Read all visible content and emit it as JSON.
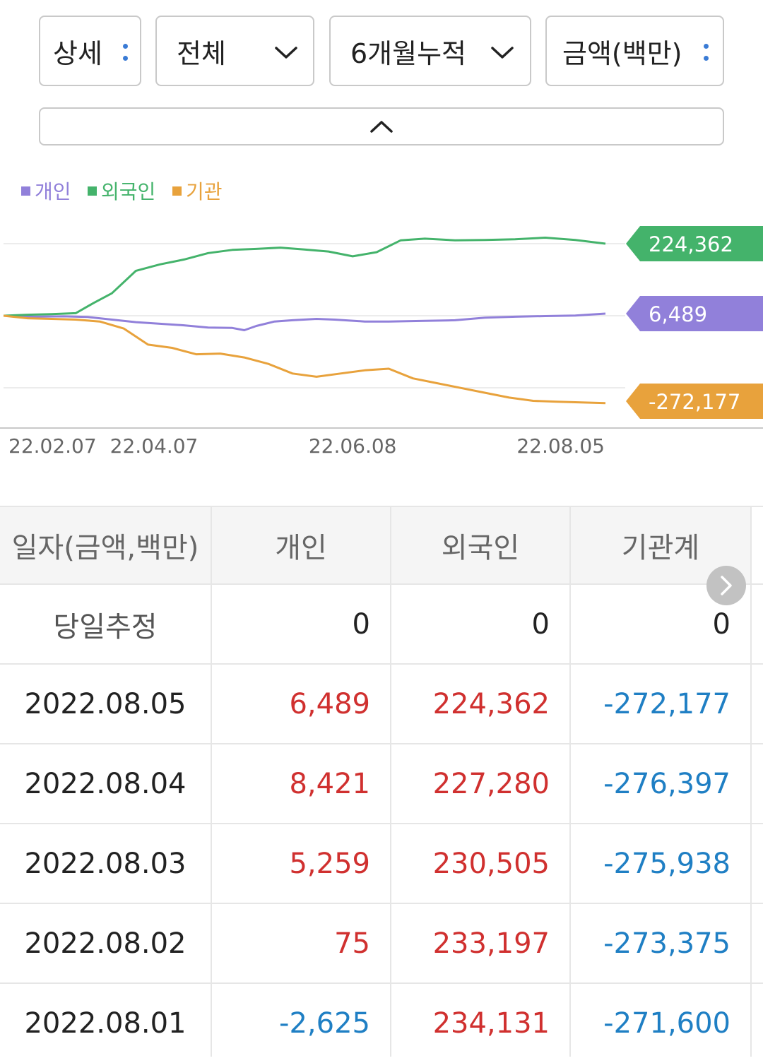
{
  "filters": {
    "detail": {
      "label": "상세"
    },
    "scope": {
      "label": "전체"
    },
    "period": {
      "label": "6개월누적"
    },
    "unit": {
      "label": "금액(백만)"
    }
  },
  "colors": {
    "individual": "#9180da",
    "foreign": "#44b36b",
    "institution": "#e8a23c",
    "positive": "#d0302f",
    "negative": "#1f7fc4"
  },
  "chart_data": {
    "type": "line",
    "legend": [
      "개인",
      "외국인",
      "기관"
    ],
    "legend_position": "top-left",
    "x_ticks": [
      "22.02.07",
      "22.04.07",
      "22.06.08",
      "22.08.05"
    ],
    "x_tick_positions": [
      0,
      0.25,
      0.58,
      1.0
    ],
    "series": [
      {
        "name": "개인",
        "color": "#9180da",
        "end_value": "6,489",
        "x": [
          0,
          0.05,
          0.1,
          0.14,
          0.18,
          0.22,
          0.26,
          0.3,
          0.34,
          0.38,
          0.4,
          0.42,
          0.45,
          0.48,
          0.52,
          0.55,
          0.6,
          0.64,
          0.7,
          0.75,
          0.8,
          0.85,
          0.9,
          0.95,
          1.0
        ],
        "values": [
          0,
          -3000,
          -2000,
          -4000,
          -12000,
          -20000,
          -25000,
          -30000,
          -37000,
          -38000,
          -45000,
          -32000,
          -18000,
          -14000,
          -10000,
          -12000,
          -18000,
          -18000,
          -16000,
          -14000,
          -6000,
          -3000,
          -1000,
          500,
          6489
        ]
      },
      {
        "name": "외국인",
        "color": "#44b36b",
        "end_value": "224,362",
        "x": [
          0,
          0.04,
          0.08,
          0.12,
          0.15,
          0.18,
          0.22,
          0.26,
          0.3,
          0.34,
          0.38,
          0.42,
          0.46,
          0.5,
          0.54,
          0.58,
          0.62,
          0.66,
          0.7,
          0.75,
          0.8,
          0.85,
          0.9,
          0.95,
          1.0
        ],
        "values": [
          0,
          3000,
          5000,
          8000,
          40000,
          70000,
          140000,
          160000,
          175000,
          195000,
          205000,
          208000,
          212000,
          206000,
          200000,
          185000,
          198000,
          235000,
          240000,
          235000,
          236000,
          238000,
          243000,
          236000,
          224362
        ]
      },
      {
        "name": "기관",
        "color": "#e8a23c",
        "end_value": "-272,177",
        "x": [
          0,
          0.04,
          0.08,
          0.12,
          0.16,
          0.2,
          0.24,
          0.28,
          0.32,
          0.36,
          0.4,
          0.44,
          0.48,
          0.52,
          0.56,
          0.6,
          0.64,
          0.68,
          0.72,
          0.76,
          0.8,
          0.84,
          0.88,
          0.92,
          1.0
        ],
        "values": [
          0,
          -8000,
          -10000,
          -12000,
          -18000,
          -40000,
          -90000,
          -100000,
          -120000,
          -118000,
          -130000,
          -150000,
          -180000,
          -190000,
          -180000,
          -170000,
          -165000,
          -195000,
          -210000,
          -225000,
          -240000,
          -255000,
          -265000,
          -268000,
          -272177
        ]
      }
    ]
  },
  "table": {
    "headers": [
      "일자(금액,백만)",
      "개인",
      "외국인",
      "기관계"
    ],
    "estimate_row": {
      "label": "당일추정",
      "values": [
        "0",
        "0",
        "0"
      ]
    },
    "rows": [
      {
        "date": "2022.08.05",
        "individual": "6,489",
        "foreign": "224,362",
        "institution": "-272,177"
      },
      {
        "date": "2022.08.04",
        "individual": "8,421",
        "foreign": "227,280",
        "institution": "-276,397"
      },
      {
        "date": "2022.08.03",
        "individual": "5,259",
        "foreign": "230,505",
        "institution": "-275,938"
      },
      {
        "date": "2022.08.02",
        "individual": "75",
        "foreign": "233,197",
        "institution": "-273,375"
      },
      {
        "date": "2022.08.01",
        "individual": "-2,625",
        "foreign": "234,131",
        "institution": "-271,600"
      }
    ]
  }
}
